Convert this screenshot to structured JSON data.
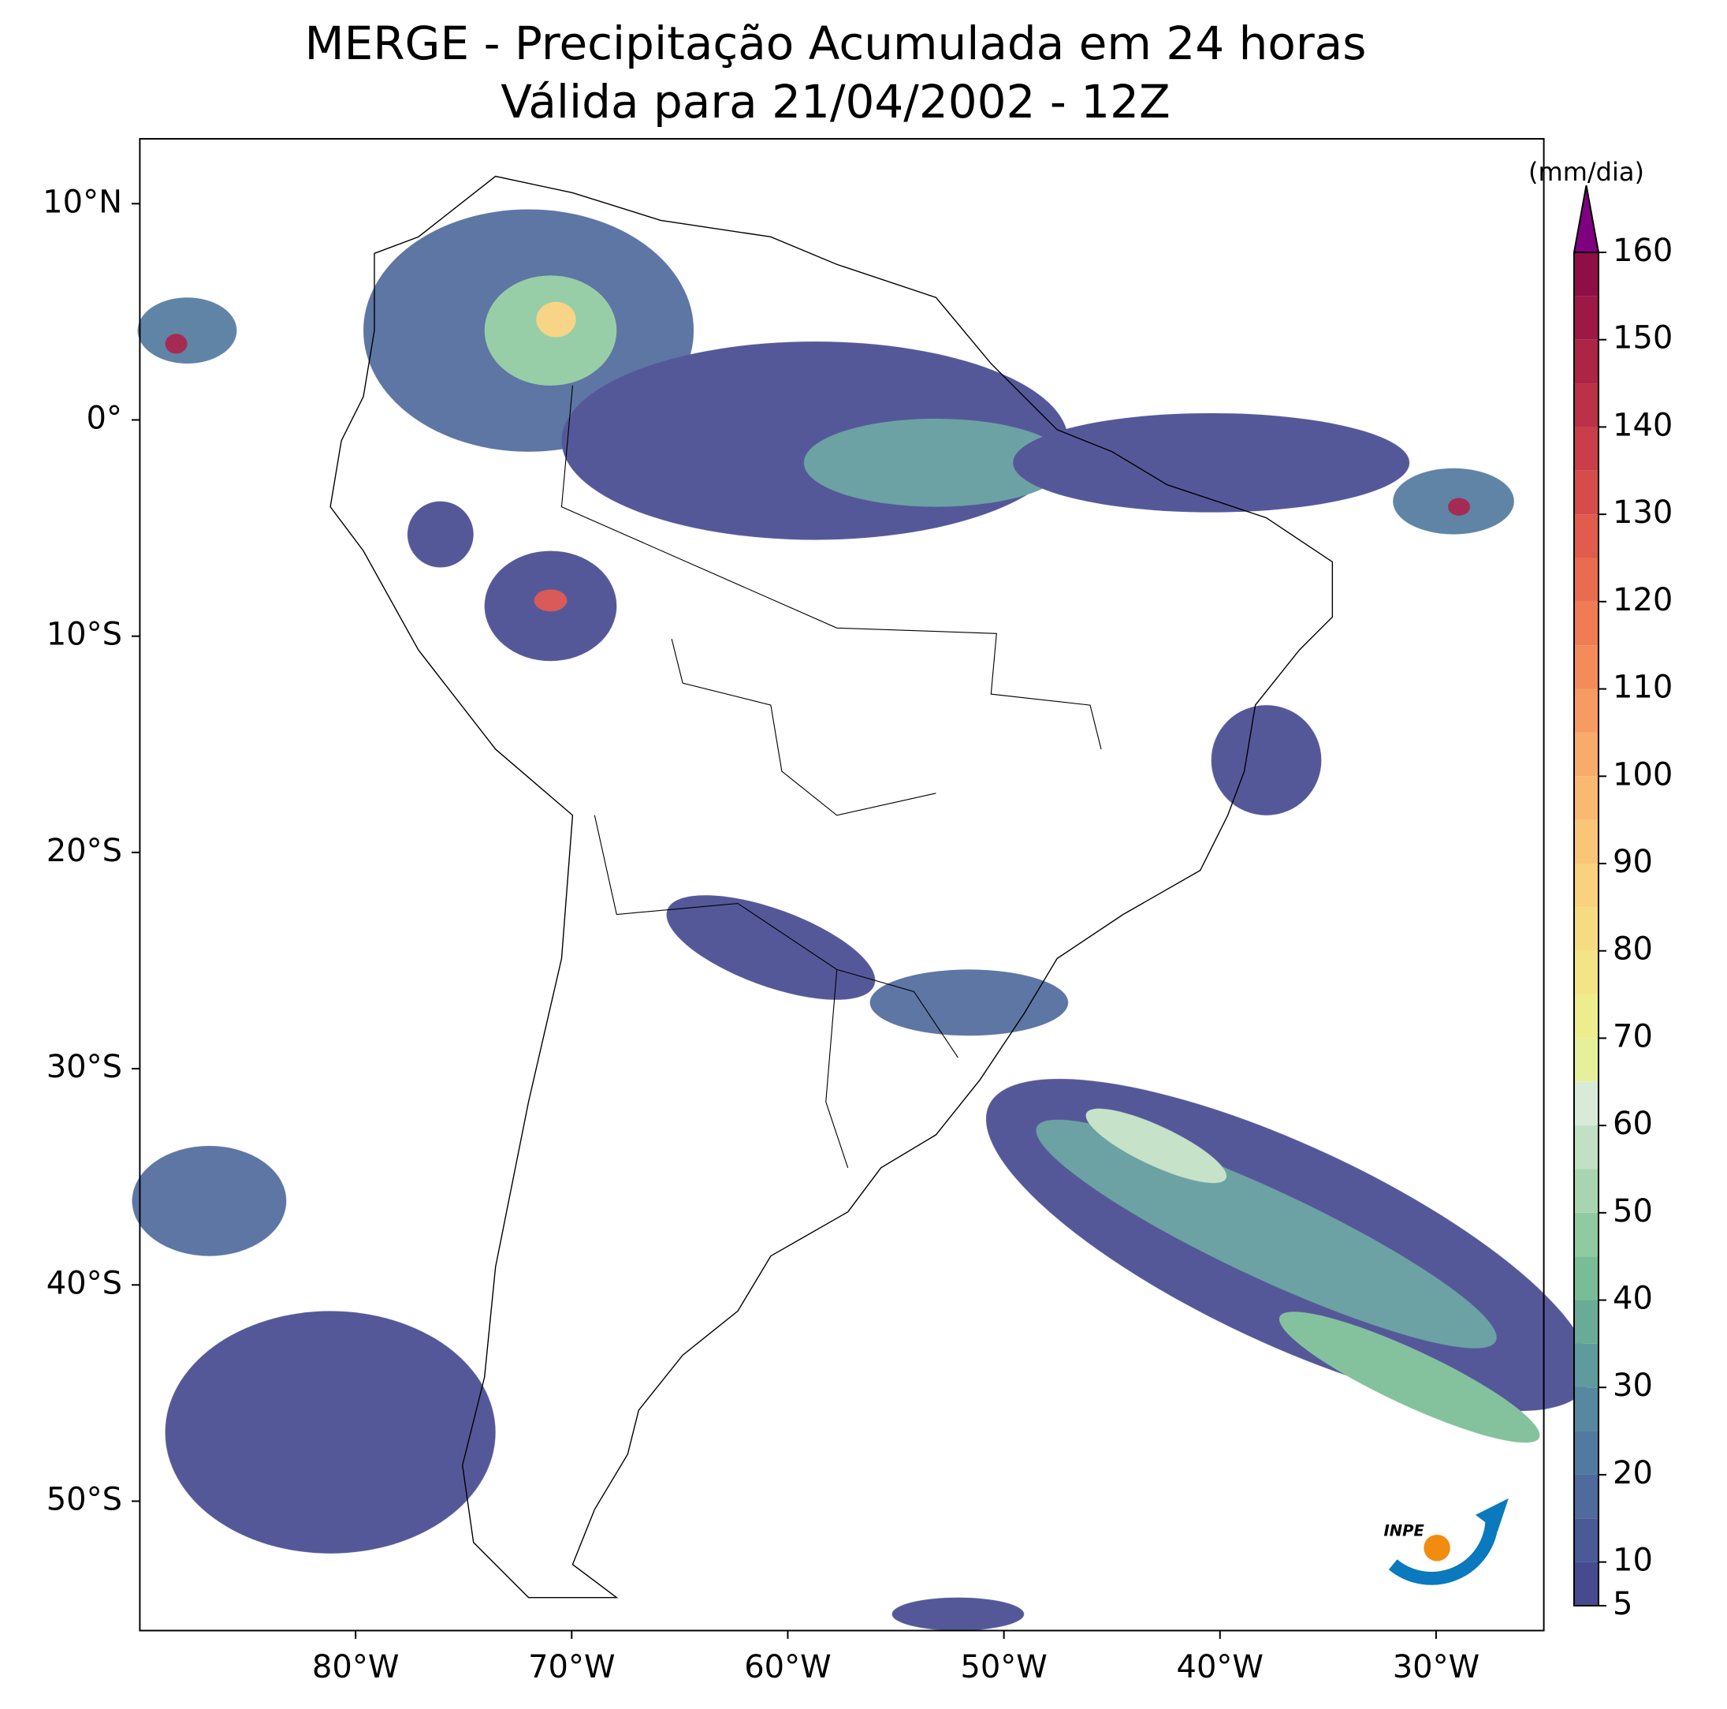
{
  "chart_data": {
    "type": "map",
    "title": "MERGE - Precipitação Acumulada em 24 horas",
    "subtitle": "Válida para 21/04/2002 - 12Z",
    "xlim": [
      -90,
      -25
    ],
    "ylim": [
      -56,
      13
    ],
    "xticks": [
      {
        "value": -80,
        "label": "80°W"
      },
      {
        "value": -70,
        "label": "70°W"
      },
      {
        "value": -60,
        "label": "60°W"
      },
      {
        "value": -50,
        "label": "50°W"
      },
      {
        "value": -40,
        "label": "40°W"
      },
      {
        "value": -30,
        "label": "30°W"
      }
    ],
    "yticks": [
      {
        "value": 10,
        "label": "10°N"
      },
      {
        "value": 0,
        "label": "0°"
      },
      {
        "value": -10,
        "label": "10°S"
      },
      {
        "value": -20,
        "label": "20°S"
      },
      {
        "value": -30,
        "label": "30°S"
      },
      {
        "value": -40,
        "label": "40°S"
      },
      {
        "value": -50,
        "label": "50°S"
      }
    ],
    "colorbar": {
      "label": "(mm/dia)",
      "lim": [
        5,
        160
      ],
      "ticks": [
        5,
        10,
        20,
        30,
        40,
        50,
        60,
        70,
        80,
        90,
        100,
        110,
        120,
        130,
        140,
        150,
        160
      ],
      "levels": [
        5,
        10,
        15,
        20,
        25,
        30,
        35,
        40,
        45,
        50,
        55,
        60,
        65,
        70,
        75,
        80,
        85,
        90,
        95,
        100,
        105,
        110,
        115,
        120,
        125,
        130,
        135,
        140,
        145,
        150,
        155,
        160
      ],
      "colors": [
        "#464a8f",
        "#4a5a96",
        "#4f6a9c",
        "#52799f",
        "#5689a0",
        "#5f9a9c",
        "#6aab98",
        "#79bd96",
        "#8fcaa0",
        "#a8d5b0",
        "#c1e0c4",
        "#d8ebd9",
        "#e6f09a",
        "#eeed8e",
        "#f3e585",
        "#f6dc80",
        "#f8d27c",
        "#f9c677",
        "#f9b971",
        "#f8ab6a",
        "#f69c62",
        "#f38c5a",
        "#ef7c53",
        "#ea6c4f",
        "#e15c4c",
        "#d64c4a",
        "#c93e48",
        "#bb3147",
        "#ac2446",
        "#9d1845",
        "#8f0e45"
      ],
      "extend_color": "#7f007f"
    },
    "logo": "INPE"
  }
}
